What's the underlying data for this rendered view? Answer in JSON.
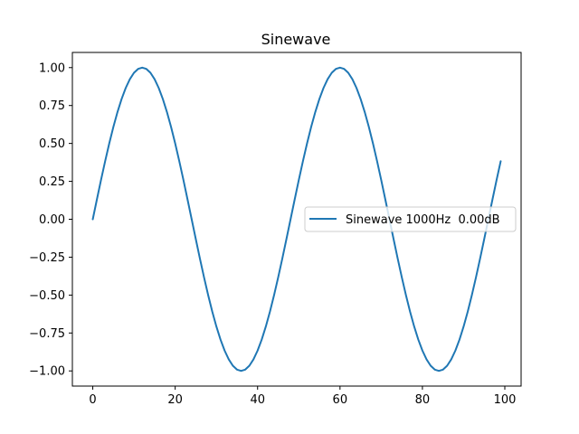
{
  "chart_data": {
    "type": "line",
    "title": "Sinewave",
    "xlabel": "",
    "ylabel": "",
    "xlim": [
      -4.95,
      103.95
    ],
    "ylim": [
      -1.1,
      1.1
    ],
    "xticks": [
      0,
      20,
      40,
      60,
      80,
      100
    ],
    "yticks": [
      -1.0,
      -0.75,
      -0.5,
      -0.25,
      0.0,
      0.25,
      0.5,
      0.75,
      1.0
    ],
    "ytick_labels": [
      "−1.00",
      "−0.75",
      "−0.50",
      "−0.25",
      "0.00",
      "0.25",
      "0.50",
      "0.75",
      "1.00"
    ],
    "xtick_labels": [
      "0",
      "20",
      "40",
      "60",
      "80",
      "100"
    ],
    "grid": false,
    "legend_position": "center-right",
    "colors": {
      "series": "#1f77b4",
      "axis": "#000000",
      "background": "#ffffff"
    },
    "series": [
      {
        "name": "Sinewave 1000Hz  0.00dB",
        "x": [
          0,
          1,
          2,
          3,
          4,
          5,
          6,
          7,
          8,
          9,
          10,
          11,
          12,
          13,
          14,
          15,
          16,
          17,
          18,
          19,
          20,
          21,
          22,
          23,
          24,
          25,
          26,
          27,
          28,
          29,
          30,
          31,
          32,
          33,
          34,
          35,
          36,
          37,
          38,
          39,
          40,
          41,
          42,
          43,
          44,
          45,
          46,
          47,
          48,
          49,
          50,
          51,
          52,
          53,
          54,
          55,
          56,
          57,
          58,
          59,
          60,
          61,
          62,
          63,
          64,
          65,
          66,
          67,
          68,
          69,
          70,
          71,
          72,
          73,
          74,
          75,
          76,
          77,
          78,
          79,
          80,
          81,
          82,
          83,
          84,
          85,
          86,
          87,
          88,
          89,
          90,
          91,
          92,
          93,
          94,
          95,
          96,
          97,
          98,
          99
        ],
        "y": [
          0.0,
          0.1305,
          0.2588,
          0.3827,
          0.5,
          0.6088,
          0.7071,
          0.7934,
          0.866,
          0.9239,
          0.9659,
          0.9914,
          1.0,
          0.9914,
          0.9659,
          0.9239,
          0.866,
          0.7934,
          0.7071,
          0.6088,
          0.5,
          0.3827,
          0.2588,
          0.1305,
          0.0,
          -0.1305,
          -0.2588,
          -0.3827,
          -0.5,
          -0.6088,
          -0.7071,
          -0.7934,
          -0.866,
          -0.9239,
          -0.9659,
          -0.9914,
          -1.0,
          -0.9914,
          -0.9659,
          -0.9239,
          -0.866,
          -0.7934,
          -0.7071,
          -0.6088,
          -0.5,
          -0.3827,
          -0.2588,
          -0.1305,
          0.0,
          0.1305,
          0.2588,
          0.3827,
          0.5,
          0.6088,
          0.7071,
          0.7934,
          0.866,
          0.9239,
          0.9659,
          0.9914,
          1.0,
          0.9914,
          0.9659,
          0.9239,
          0.866,
          0.7934,
          0.7071,
          0.6088,
          0.5,
          0.3827,
          0.2588,
          0.1305,
          0.0,
          -0.1305,
          -0.2588,
          -0.3827,
          -0.5,
          -0.6088,
          -0.7071,
          -0.7934,
          -0.866,
          -0.9239,
          -0.9659,
          -0.9914,
          -1.0,
          -0.9914,
          -0.9659,
          -0.9239,
          -0.866,
          -0.7934,
          -0.7071,
          -0.6088,
          -0.5,
          -0.3827,
          -0.2588,
          -0.1305,
          0.0,
          0.1305,
          0.2588,
          0.3827
        ]
      }
    ]
  }
}
